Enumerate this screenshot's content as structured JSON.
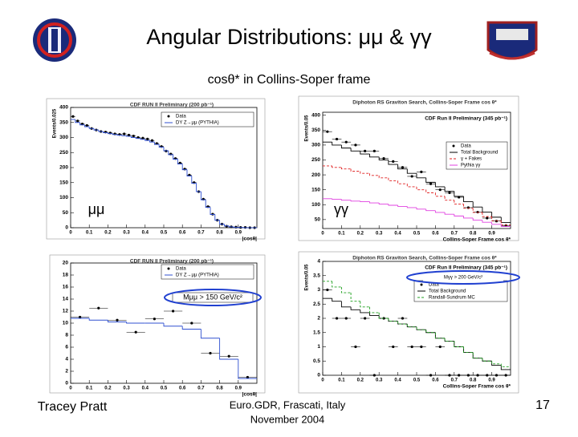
{
  "slide": {
    "title": "Angular Distributions: μμ & γγ",
    "subtitle": "cosθ* in Collins-Soper frame",
    "label_mumu": "μμ",
    "label_gg": "γγ",
    "author": "Tracey Pratt",
    "venue": "Euro.GDR, Frascati, Italy",
    "date": "November 2004",
    "page": "17"
  },
  "chart_data": [
    {
      "type": "histogram",
      "title": "CDF RUN II Preliminary (200 pb⁻¹)",
      "x_label": "|cosθ|",
      "y_label": "Events/0.025",
      "bins": [
        0,
        0.025,
        0.05,
        0.075,
        0.1,
        0.125,
        0.15,
        0.175,
        0.2,
        0.225,
        0.25,
        0.275,
        0.3,
        0.325,
        0.35,
        0.375,
        0.4,
        0.425,
        0.45,
        0.475,
        0.5,
        0.525,
        0.55,
        0.575,
        0.6,
        0.625,
        0.65,
        0.675,
        0.7,
        0.725,
        0.75,
        0.775,
        0.8,
        0.825,
        0.85,
        0.875,
        0.9,
        0.925,
        0.95,
        0.975,
        1
      ],
      "series": [
        {
          "name": "Data",
          "color": "#000000",
          "style": "points",
          "values": [
            370,
            355,
            345,
            340,
            330,
            325,
            320,
            318,
            315,
            312,
            310,
            312,
            308,
            305,
            300,
            298,
            295,
            290,
            280,
            270,
            255,
            245,
            230,
            215,
            195,
            175,
            150,
            120,
            95,
            70,
            45,
            25,
            12,
            5,
            3,
            2,
            1,
            1,
            0,
            0
          ]
        },
        {
          "name": "DY Z→μμ (PYTHIA)",
          "color": "#3050d0",
          "style": "step",
          "values": [
            360,
            350,
            342,
            336,
            330,
            325,
            320,
            316,
            313,
            310,
            308,
            306,
            304,
            300,
            297,
            294,
            290,
            285,
            277,
            268,
            256,
            243,
            228,
            212,
            193,
            172,
            148,
            120,
            93,
            68,
            44,
            25,
            12,
            6,
            3,
            1,
            1,
            0,
            0,
            0
          ]
        }
      ],
      "xlim": [
        0,
        1
      ],
      "ylim": [
        0,
        400
      ],
      "xticks": [
        0,
        0.1,
        0.2,
        0.3,
        0.4,
        0.5,
        0.6,
        0.7,
        0.8,
        0.9
      ],
      "yticks": [
        0,
        50,
        100,
        150,
        200,
        250,
        300,
        350,
        400
      ]
    },
    {
      "type": "histogram",
      "title": "Diphoton RS Graviton Search, Collins-Soper Frame cos θ*",
      "subtitle": "CDF Run II Preliminary (345 pb⁻¹)",
      "x_label": "Collins-Soper Frame cos θ*",
      "y_label": "Events/0.05",
      "bins": [
        0,
        0.05,
        0.1,
        0.15,
        0.2,
        0.25,
        0.3,
        0.35,
        0.4,
        0.45,
        0.5,
        0.55,
        0.6,
        0.65,
        0.7,
        0.75,
        0.8,
        0.85,
        0.9,
        0.95,
        1
      ],
      "series": [
        {
          "name": "Data",
          "color": "#000000",
          "style": "points",
          "values": [
            345,
            320,
            310,
            300,
            280,
            280,
            255,
            245,
            225,
            195,
            210,
            170,
            150,
            140,
            125,
            90,
            75,
            55,
            45,
            30
          ]
        },
        {
          "name": "Total Background",
          "color": "#000000",
          "style": "step",
          "values": [
            310,
            300,
            290,
            280,
            270,
            260,
            250,
            235,
            220,
            205,
            190,
            175,
            160,
            145,
            128,
            110,
            92,
            75,
            58,
            40
          ]
        },
        {
          "name": "γ + Fakes",
          "color": "#e02020",
          "style": "dashed",
          "values": [
            230,
            225,
            220,
            212,
            205,
            198,
            190,
            180,
            170,
            160,
            150,
            140,
            128,
            115,
            102,
            88,
            74,
            60,
            46,
            32
          ]
        },
        {
          "name": "Pythia γγ",
          "color": "#e040e0",
          "style": "step",
          "values": [
            120,
            118,
            115,
            112,
            110,
            106,
            102,
            98,
            94,
            90,
            85,
            80,
            74,
            68,
            62,
            55,
            48,
            41,
            34,
            27
          ]
        }
      ],
      "xlim": [
        0,
        1
      ],
      "ylim": [
        20,
        410
      ],
      "xticks": [
        0,
        0.1,
        0.2,
        0.3,
        0.4,
        0.5,
        0.6,
        0.7,
        0.8,
        0.9
      ],
      "yticks": [
        50,
        100,
        150,
        200,
        250,
        300,
        350,
        400
      ]
    },
    {
      "type": "histogram",
      "title": "CDF RUN II Preliminary (200 pb⁻¹)",
      "x_label": "|cosθ|",
      "annotation": "Mμμ > 150 GeV/c²",
      "bins": [
        0,
        0.1,
        0.2,
        0.3,
        0.4,
        0.5,
        0.6,
        0.7,
        0.8,
        0.9,
        1
      ],
      "series": [
        {
          "name": "Data",
          "color": "#000000",
          "style": "points",
          "values": [
            11,
            12.5,
            10.5,
            8.5,
            10.7,
            12,
            10,
            5,
            4.5,
            1
          ]
        },
        {
          "name": "DY Z→μμ (PYTHIA)",
          "color": "#3050d0",
          "style": "step",
          "values": [
            10.8,
            10.5,
            10.2,
            10,
            10,
            9.5,
            9,
            7.5,
            4,
            0.8
          ]
        }
      ],
      "xlim": [
        0,
        1
      ],
      "ylim": [
        0,
        20
      ],
      "xticks": [
        0,
        0.1,
        0.2,
        0.3,
        0.4,
        0.5,
        0.6,
        0.7,
        0.8,
        0.9
      ],
      "yticks": [
        0,
        2,
        4,
        6,
        8,
        10,
        12,
        14,
        16,
        18,
        20
      ]
    },
    {
      "type": "histogram",
      "title": "Diphoton RS Graviton Search, Collins-Soper Frame cos θ*",
      "subtitle": "CDF Run II Preliminary (345 pb⁻¹)",
      "x_label": "Collins-Soper Frame cos θ*",
      "y_label": "Events/0.05",
      "annotation": "Mγγ > 200 GeV/c²",
      "bins": [
        0,
        0.05,
        0.1,
        0.15,
        0.2,
        0.25,
        0.3,
        0.35,
        0.4,
        0.45,
        0.5,
        0.55,
        0.6,
        0.65,
        0.7,
        0.75,
        0.8,
        0.85,
        0.9,
        0.95,
        1
      ],
      "series": [
        {
          "name": "Data",
          "color": "#000000",
          "style": "points",
          "values": [
            3,
            2,
            2,
            1,
            2,
            0,
            2,
            1,
            2,
            1,
            1,
            0,
            1,
            0,
            0,
            0,
            0,
            0,
            0,
            0
          ]
        },
        {
          "name": "Total Background",
          "color": "#000000",
          "style": "step",
          "values": [
            2.7,
            2.6,
            2.4,
            2.3,
            2.2,
            2.1,
            2,
            1.9,
            1.8,
            1.7,
            1.6,
            1.5,
            1.3,
            1.2,
            1,
            0.8,
            0.6,
            0.5,
            0.35,
            0.2
          ]
        },
        {
          "name": "Randall-Sundrum MC",
          "color": "#20a020",
          "style": "dashed",
          "values": [
            3.3,
            3.1,
            2.9,
            2.6,
            2.4,
            2.2,
            2,
            1.9,
            1.8,
            1.7,
            1.6,
            1.5,
            1.3,
            1.2,
            1,
            0.8,
            0.6,
            0.5,
            0.4,
            0.3
          ]
        }
      ],
      "xlim": [
        0,
        1
      ],
      "ylim": [
        0,
        4
      ],
      "xticks": [
        0,
        0.1,
        0.2,
        0.3,
        0.4,
        0.5,
        0.6,
        0.7,
        0.8,
        0.9
      ],
      "yticks": [
        0,
        0.5,
        1,
        1.5,
        2,
        2.5,
        3,
        3.5,
        4
      ]
    }
  ]
}
